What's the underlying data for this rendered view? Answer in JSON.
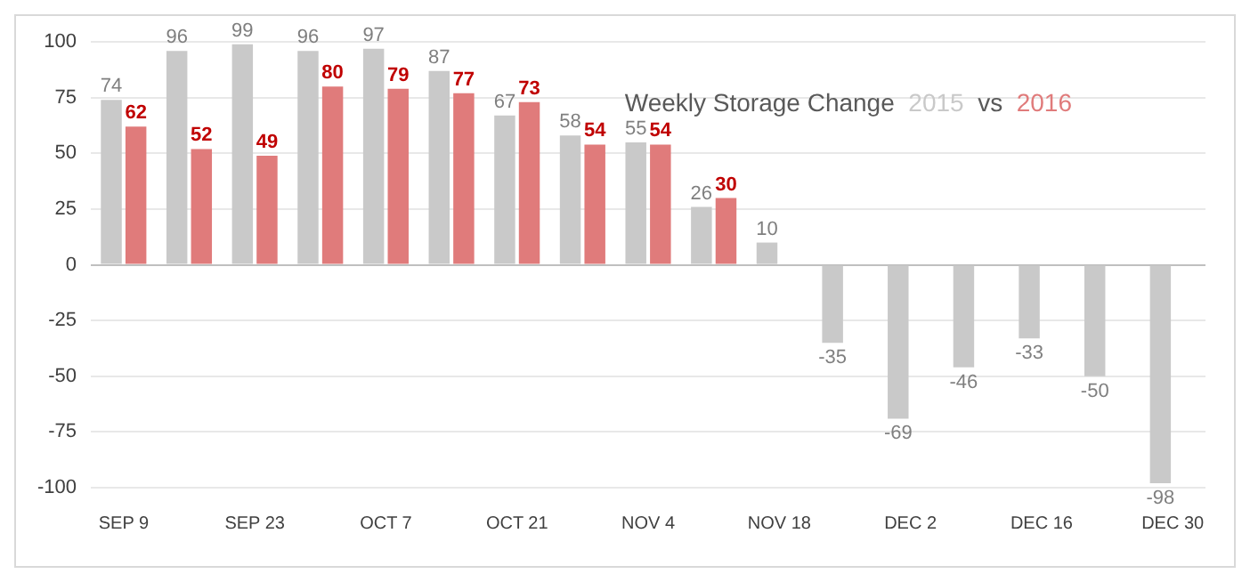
{
  "chart_data": {
    "type": "bar",
    "title": "Weekly Storage Change",
    "annotations": [
      "vs"
    ],
    "categories": [
      "SEP 9",
      null,
      "SEP 23",
      null,
      "OCT 7",
      null,
      "OCT 21",
      null,
      "NOV 4",
      null,
      "NOV 18",
      null,
      "DEC 2",
      null,
      "DEC 16",
      null,
      "DEC 30"
    ],
    "series": [
      {
        "name": "2015",
        "color": "#c9c9c9",
        "values": [
          74,
          96,
          99,
          96,
          97,
          87,
          67,
          58,
          55,
          26,
          10,
          -35,
          -69,
          -46,
          -33,
          -50,
          -98
        ]
      },
      {
        "name": "2016",
        "color": "#e07b7b",
        "values": [
          62,
          52,
          49,
          80,
          79,
          77,
          73,
          54,
          54,
          30,
          null,
          null,
          null,
          null,
          null,
          null,
          null
        ]
      }
    ],
    "ylim": [
      -100,
      100
    ],
    "yticks": [
      -100,
      -75,
      -50,
      -25,
      0,
      25,
      50,
      75,
      100
    ],
    "grid": "y",
    "data_labels": true
  }
}
